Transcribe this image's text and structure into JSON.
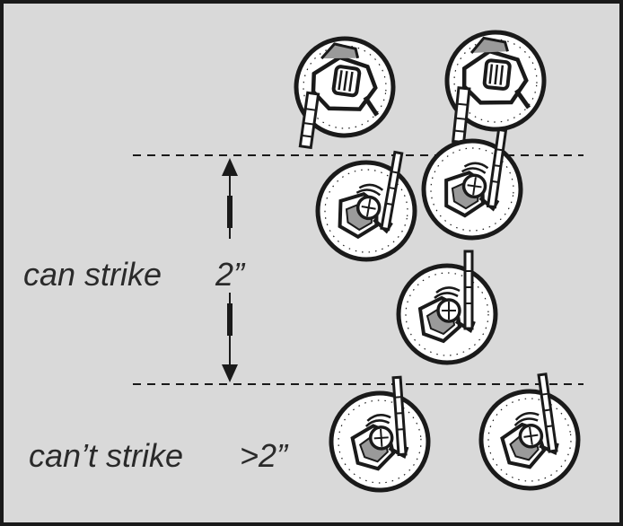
{
  "labels": {
    "can_strike": "can strike",
    "can_strike_distance": "2”",
    "cant_strike": "can’t strike",
    "cant_strike_distance": ">2”"
  },
  "colors": {
    "background": "#d9d9d9",
    "ink": "#1a1a1a",
    "text": "#2a2a2a",
    "base_fill": "#ffffff"
  },
  "icons": {
    "measure_arrow": "double-headed-arrow",
    "range_line": "dashed-line",
    "miniature": "armored-knight-on-round-base"
  }
}
